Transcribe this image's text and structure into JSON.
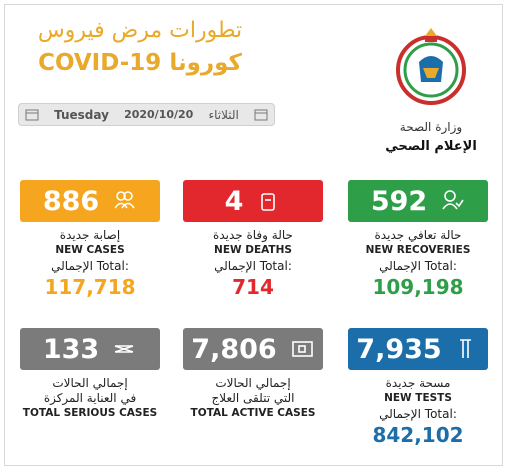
{
  "header": {
    "title_ar": "تطورات مرض فيروس",
    "covid": "COVID-19",
    "corona": "كورونا"
  },
  "ministry": {
    "name": "وزارة الصحة",
    "department": "الإعلام الصحي"
  },
  "date": {
    "day_en": "Tuesday",
    "date": "2020/10/20",
    "day_ar": "الثلاثاء"
  },
  "cards": [
    {
      "value": "886",
      "label_ar": [
        "إصابة جديدة"
      ],
      "label_en": "NEW CASES",
      "total_label": "الإجمالي Total:",
      "total": "117,718",
      "color": "#f5a51e"
    },
    {
      "value": "4",
      "label_ar": [
        "حالة وفاة جديدة"
      ],
      "label_en": "NEW DEATHS",
      "total_label": "الإجمالي Total:",
      "total": "714",
      "color": "#e3282d"
    },
    {
      "value": "592",
      "label_ar": [
        "حالة تعافي جديدة"
      ],
      "label_en": "NEW RECOVERIES",
      "total_label": "الإجمالي Total:",
      "total": "109,198",
      "color": "#2f9e48"
    },
    {
      "value": "133",
      "label_ar": [
        "إجمالي الحالات",
        "في العناية المركزة"
      ],
      "label_en": "TOTAL SERIOUS CASES",
      "color": "#7b7b7b"
    },
    {
      "value": "7,806",
      "label_ar": [
        "إجمالي الحالات",
        "التي تتلقى العلاج"
      ],
      "label_en": "TOTAL ACTIVE CASES",
      "color": "#7b7b7b"
    },
    {
      "value": "7,935",
      "label_ar": [
        "مسحة جديدة"
      ],
      "label_en": "NEW TESTS",
      "total_label": "الإجمالي Total:",
      "total": "842,102",
      "color": "#1c6eaa"
    }
  ]
}
